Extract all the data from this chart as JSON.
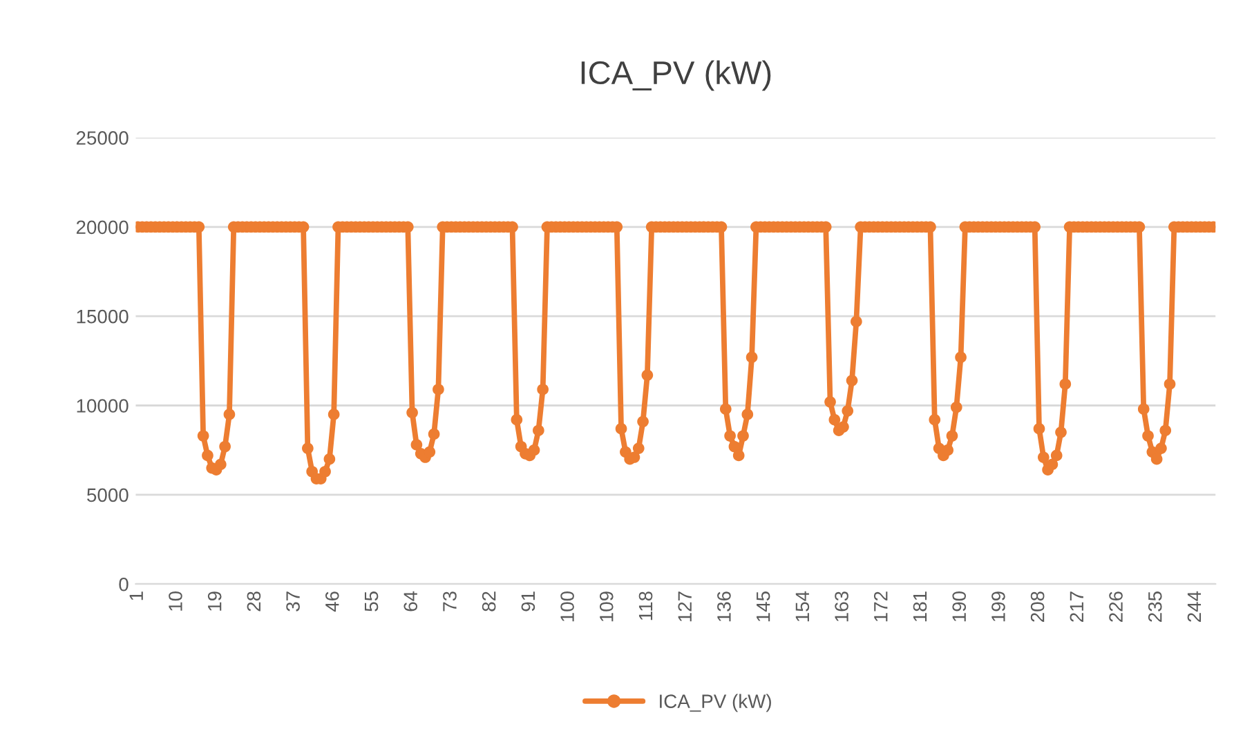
{
  "chart_data": {
    "type": "line",
    "title": "ICA_PV (kW)",
    "categories": [
      "1",
      null,
      null,
      null,
      null,
      null,
      null,
      null,
      null,
      "10",
      null,
      null,
      null,
      null,
      null,
      null,
      null,
      null,
      "19",
      null,
      null,
      null,
      null,
      null,
      null,
      null,
      null,
      "28",
      null,
      null,
      null,
      null,
      null,
      null,
      null,
      null,
      "37",
      null,
      null,
      null,
      null,
      null,
      null,
      null,
      null,
      "46",
      null,
      null,
      null,
      null,
      null,
      null,
      null,
      null,
      "55",
      null,
      null,
      null,
      null,
      null,
      null,
      null,
      null,
      "64",
      null,
      null,
      null,
      null,
      null,
      null,
      null,
      null,
      "73",
      null,
      null,
      null,
      null,
      null,
      null,
      null,
      null,
      "82",
      null,
      null,
      null,
      null,
      null,
      null,
      null,
      null,
      "91",
      null,
      null,
      null,
      null,
      null,
      null,
      null,
      null,
      "100",
      null,
      null,
      null,
      null,
      null,
      null,
      null,
      null,
      "109",
      null,
      null,
      null,
      null,
      null,
      null,
      null,
      null,
      "118",
      null,
      null,
      null,
      null,
      null,
      null,
      null,
      null,
      "127",
      null,
      null,
      null,
      null,
      null,
      null,
      null,
      null,
      "136",
      null,
      null,
      null,
      null,
      null,
      null,
      null,
      null,
      "145",
      null,
      null,
      null,
      null,
      null,
      null,
      null,
      null,
      "154",
      null,
      null,
      null,
      null,
      null,
      null,
      null,
      null,
      "163",
      null,
      null,
      null,
      null,
      null,
      null,
      null,
      null,
      "172",
      null,
      null,
      null,
      null,
      null,
      null,
      null,
      null,
      "181",
      null,
      null,
      null,
      null,
      null,
      null,
      null,
      null,
      "190",
      null,
      null,
      null,
      null,
      null,
      null,
      null,
      null,
      "199",
      null,
      null,
      null,
      null,
      null,
      null,
      null,
      null,
      "208",
      null,
      null,
      null,
      null,
      null,
      null,
      null,
      null,
      "217",
      null,
      null,
      null,
      null,
      null,
      null,
      null,
      null,
      "226",
      null,
      null,
      null,
      null,
      null,
      null,
      null,
      null,
      "235",
      null,
      null,
      null,
      null,
      null,
      null,
      null,
      null,
      "244",
      null,
      null,
      null,
      null
    ],
    "series": [
      {
        "name": "ICA_PV (kW)",
        "color": "#ed7d31",
        "values": [
          20000,
          20000,
          20000,
          20000,
          20000,
          20000,
          20000,
          20000,
          20000,
          20000,
          20000,
          20000,
          20000,
          20000,
          20000,
          8300,
          7200,
          6500,
          6400,
          6700,
          7700,
          9500,
          20000,
          20000,
          20000,
          20000,
          20000,
          20000,
          20000,
          20000,
          20000,
          20000,
          20000,
          20000,
          20000,
          20000,
          20000,
          20000,
          20000,
          7600,
          6300,
          5900,
          5900,
          6300,
          7000,
          9500,
          20000,
          20000,
          20000,
          20000,
          20000,
          20000,
          20000,
          20000,
          20000,
          20000,
          20000,
          20000,
          20000,
          20000,
          20000,
          20000,
          20000,
          9600,
          7800,
          7300,
          7100,
          7400,
          8400,
          10900,
          20000,
          20000,
          20000,
          20000,
          20000,
          20000,
          20000,
          20000,
          20000,
          20000,
          20000,
          20000,
          20000,
          20000,
          20000,
          20000,
          20000,
          9200,
          7700,
          7300,
          7200,
          7500,
          8600,
          10900,
          20000,
          20000,
          20000,
          20000,
          20000,
          20000,
          20000,
          20000,
          20000,
          20000,
          20000,
          20000,
          20000,
          20000,
          20000,
          20000,
          20000,
          8700,
          7400,
          7000,
          7100,
          7600,
          9100,
          11700,
          20000,
          20000,
          20000,
          20000,
          20000,
          20000,
          20000,
          20000,
          20000,
          20000,
          20000,
          20000,
          20000,
          20000,
          20000,
          20000,
          20000,
          9800,
          8300,
          7700,
          7200,
          8300,
          9500,
          12700,
          20000,
          20000,
          20000,
          20000,
          20000,
          20000,
          20000,
          20000,
          20000,
          20000,
          20000,
          20000,
          20000,
          20000,
          20000,
          20000,
          20000,
          10200,
          9200,
          8600,
          8800,
          9700,
          11400,
          14700,
          20000,
          20000,
          20000,
          20000,
          20000,
          20000,
          20000,
          20000,
          20000,
          20000,
          20000,
          20000,
          20000,
          20000,
          20000,
          20000,
          20000,
          9200,
          7600,
          7200,
          7500,
          8300,
          9900,
          12700,
          20000,
          20000,
          20000,
          20000,
          20000,
          20000,
          20000,
          20000,
          20000,
          20000,
          20000,
          20000,
          20000,
          20000,
          20000,
          20000,
          20000,
          8700,
          7100,
          6400,
          6700,
          7200,
          8500,
          11200,
          20000,
          20000,
          20000,
          20000,
          20000,
          20000,
          20000,
          20000,
          20000,
          20000,
          20000,
          20000,
          20000,
          20000,
          20000,
          20000,
          20000,
          9800,
          8300,
          7400,
          7000,
          7600,
          8600,
          11200,
          20000,
          20000,
          20000,
          20000,
          20000,
          20000,
          20000,
          20000,
          20000,
          20000
        ]
      }
    ],
    "ylim": [
      0,
      25000
    ],
    "yticks": [
      0,
      5000,
      10000,
      15000,
      20000,
      25000
    ],
    "grid": "y",
    "legend": "bottom",
    "marker": "circle",
    "line_style": "solid"
  }
}
